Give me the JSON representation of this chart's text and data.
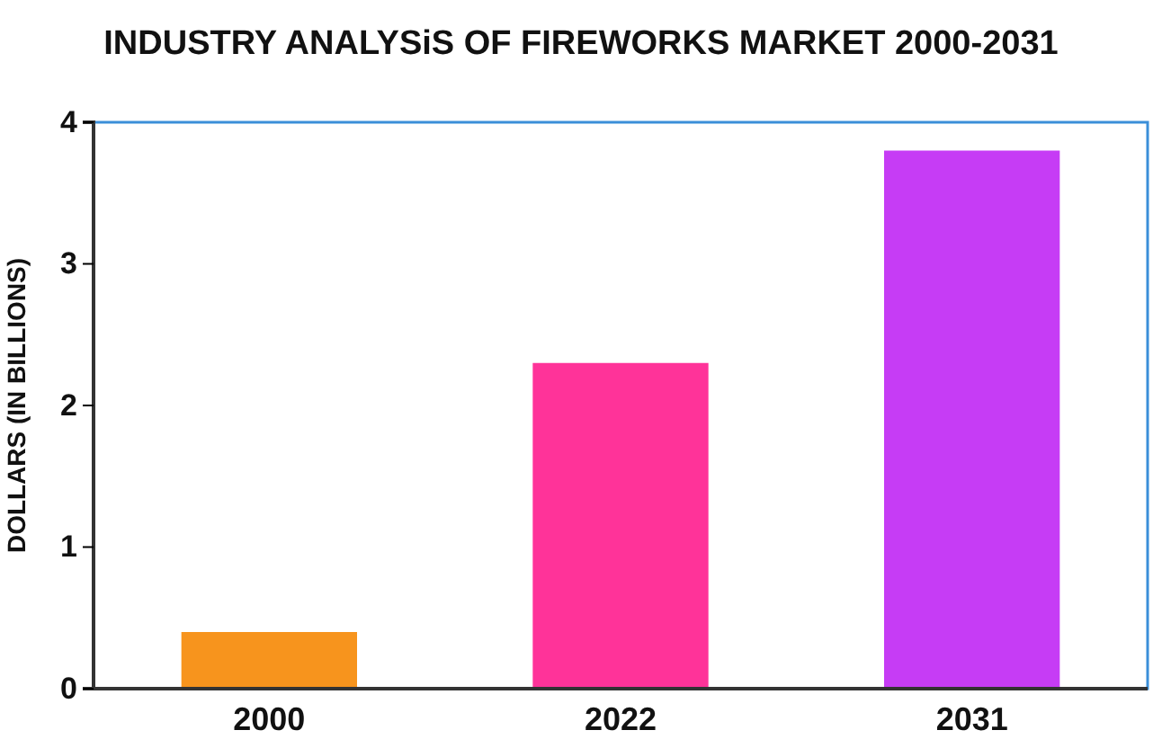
{
  "chart_data": {
    "type": "bar",
    "title": "INDUSTRY ANALYSiS OF FIREWORKS MARKET 2000-2031",
    "ylabel": "DOLLARS (IN BILLIONS)",
    "categories": [
      "2000",
      "2022",
      "2031"
    ],
    "values": [
      0.4,
      2.3,
      3.8
    ],
    "colors": [
      "#f7941d",
      "#ff3399",
      "#c63cf5"
    ],
    "ylim": [
      0,
      4
    ],
    "yticks": [
      0,
      1,
      2,
      3,
      4
    ],
    "grid": false
  }
}
